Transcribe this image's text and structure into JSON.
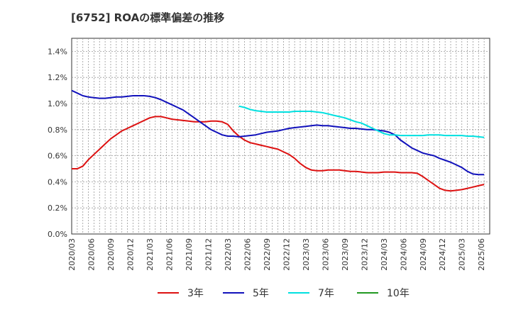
{
  "chart_data": {
    "type": "line",
    "title": "[6752]  ROAの標準偏差の推移",
    "xlabel": "",
    "ylabel": "",
    "ylim": [
      0,
      1.5
    ],
    "yticks": [
      "0.0%",
      "0.2%",
      "0.4%",
      "0.6%",
      "0.8%",
      "1.0%",
      "1.2%",
      "1.4%"
    ],
    "yticks_values": [
      0,
      0.2,
      0.4,
      0.6,
      0.8,
      1.0,
      1.2,
      1.4
    ],
    "xticks": [
      "2020/03",
      "2020/06",
      "2020/09",
      "2020/12",
      "2021/03",
      "2021/06",
      "2021/09",
      "2021/12",
      "2022/03",
      "2022/06",
      "2022/09",
      "2022/12",
      "2023/03",
      "2023/06",
      "2023/09",
      "2023/12",
      "2024/03",
      "2024/06",
      "2024/09",
      "2024/12",
      "2025/03",
      "2025/06"
    ],
    "grid": true,
    "legend_position": "bottom",
    "series": [
      {
        "name": "3年",
        "color": "#dd1111",
        "start_month_index": 0,
        "values": [
          0.5,
          0.5,
          0.52,
          0.57,
          0.61,
          0.65,
          0.69,
          0.73,
          0.76,
          0.79,
          0.81,
          0.83,
          0.85,
          0.87,
          0.89,
          0.9,
          0.9,
          0.89,
          0.88,
          0.875,
          0.87,
          0.865,
          0.86,
          0.86,
          0.86,
          0.865,
          0.865,
          0.86,
          0.84,
          0.79,
          0.75,
          0.72,
          0.7,
          0.69,
          0.68,
          0.67,
          0.66,
          0.65,
          0.63,
          0.61,
          0.58,
          0.54,
          0.51,
          0.49,
          0.485,
          0.485,
          0.49,
          0.49,
          0.49,
          0.485,
          0.48,
          0.48,
          0.475,
          0.47,
          0.47,
          0.47,
          0.475,
          0.475,
          0.475,
          0.47,
          0.47,
          0.47,
          0.465,
          0.44,
          0.41,
          0.38,
          0.35,
          0.335,
          0.33,
          0.335,
          0.34,
          0.35,
          0.36,
          0.37,
          0.38
        ]
      },
      {
        "name": "5年",
        "color": "#1111bb",
        "start_month_index": 0,
        "values": [
          1.1,
          1.08,
          1.06,
          1.05,
          1.045,
          1.04,
          1.04,
          1.045,
          1.05,
          1.05,
          1.055,
          1.06,
          1.06,
          1.06,
          1.055,
          1.045,
          1.03,
          1.01,
          0.99,
          0.97,
          0.95,
          0.92,
          0.89,
          0.86,
          0.83,
          0.8,
          0.78,
          0.76,
          0.75,
          0.75,
          0.745,
          0.75,
          0.755,
          0.76,
          0.77,
          0.78,
          0.785,
          0.79,
          0.8,
          0.81,
          0.815,
          0.82,
          0.825,
          0.83,
          0.835,
          0.83,
          0.83,
          0.825,
          0.82,
          0.815,
          0.81,
          0.81,
          0.805,
          0.8,
          0.8,
          0.795,
          0.79,
          0.78,
          0.76,
          0.72,
          0.69,
          0.66,
          0.64,
          0.62,
          0.61,
          0.6,
          0.58,
          0.565,
          0.55,
          0.53,
          0.51,
          0.48,
          0.46,
          0.455,
          0.455
        ]
      },
      {
        "name": "7年",
        "color": "#00e0e0",
        "start_month_index": 30,
        "values": [
          0.98,
          0.97,
          0.955,
          0.945,
          0.94,
          0.935,
          0.935,
          0.935,
          0.935,
          0.935,
          0.94,
          0.94,
          0.94,
          0.94,
          0.935,
          0.93,
          0.92,
          0.91,
          0.9,
          0.89,
          0.875,
          0.86,
          0.85,
          0.83,
          0.81,
          0.79,
          0.77,
          0.76,
          0.76,
          0.755,
          0.755,
          0.755,
          0.755,
          0.755,
          0.76,
          0.76,
          0.76,
          0.755,
          0.755,
          0.755,
          0.755,
          0.75,
          0.75,
          0.745,
          0.74
        ]
      },
      {
        "name": "10年",
        "color": "#229922",
        "start_month_index": 0,
        "values": []
      }
    ]
  }
}
